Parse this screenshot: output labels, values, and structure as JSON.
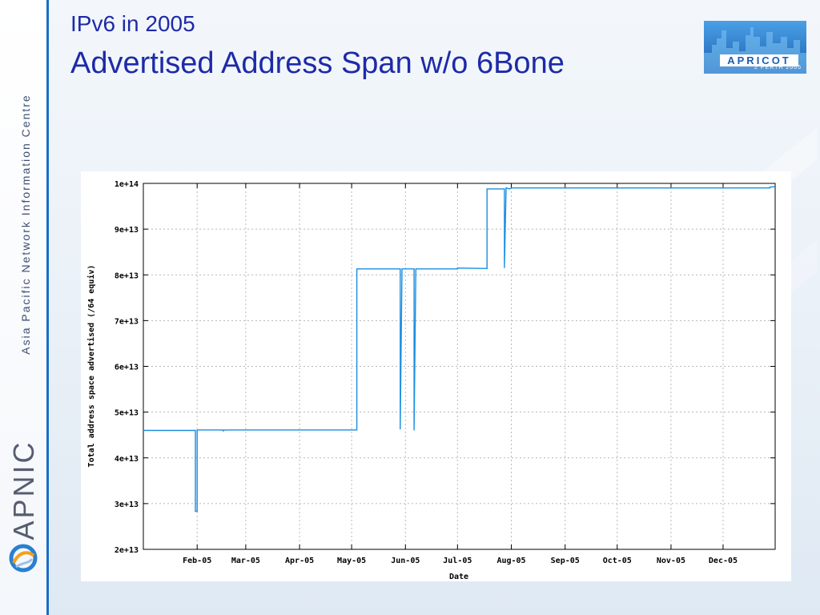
{
  "slide": {
    "subtitle": "IPv6 in 2005",
    "title": "Advertised Address Span w/o 6Bone",
    "sidebar_text": "Asia Pacific Network Information Centre",
    "sidebar_logo": "APNIC",
    "logo": {
      "name": "APRICOT",
      "tagline": "2 PERTH 2005"
    },
    "colors": {
      "title": "#1e2aa8",
      "accent": "#1a6fc4",
      "series": "#1a8ee0"
    },
    "icons": [
      "apnic-logo-icon",
      "apricot-logo-icon"
    ]
  },
  "chart_data": {
    "type": "line",
    "title": "",
    "xlabel": "Date",
    "ylabel": "Total address space advertised (/64 equiv)",
    "x_ticks": [
      "Feb-05",
      "Mar-05",
      "Apr-05",
      "May-05",
      "Jun-05",
      "Jul-05",
      "Aug-05",
      "Sep-05",
      "Oct-05",
      "Nov-05",
      "Dec-05"
    ],
    "y_ticks": [
      "2e+13",
      "3e+13",
      "4e+13",
      "5e+13",
      "6e+13",
      "7e+13",
      "8e+13",
      "9e+13",
      "1e+14"
    ],
    "xlim": [
      "2005-01-01",
      "2005-12-31"
    ],
    "ylim": [
      20000000000000.0,
      100000000000000.0
    ],
    "grid": true,
    "legend": false,
    "series": [
      {
        "points": [
          [
            "2005-01-01",
            46000000000000.0
          ],
          [
            "2005-01-31",
            46000000000000.0
          ],
          [
            "2005-01-31",
            28300000000000.0
          ],
          [
            "2005-02-01",
            28300000000000.0
          ],
          [
            "2005-02-01",
            46100000000000.0
          ],
          [
            "2005-02-16",
            46100000000000.0
          ],
          [
            "2005-02-16",
            45900000000000.0
          ],
          [
            "2005-02-17",
            46100000000000.0
          ],
          [
            "2005-05-04",
            46100000000000.0
          ],
          [
            "2005-05-04",
            81300000000000.0
          ],
          [
            "2005-05-29",
            81300000000000.0
          ],
          [
            "2005-05-29",
            46200000000000.0
          ],
          [
            "2005-05-30",
            81300000000000.0
          ],
          [
            "2005-06-06",
            81300000000000.0
          ],
          [
            "2005-06-06",
            46000000000000.0
          ],
          [
            "2005-06-07",
            81300000000000.0
          ],
          [
            "2005-07-01",
            81300000000000.0
          ],
          [
            "2005-07-01",
            81500000000000.0
          ],
          [
            "2005-07-18",
            81400000000000.0
          ],
          [
            "2005-07-18",
            98800000000000.0
          ],
          [
            "2005-07-28",
            98800000000000.0
          ],
          [
            "2005-07-28",
            81500000000000.0
          ],
          [
            "2005-07-29",
            99000000000000.0
          ],
          [
            "2005-07-31",
            98800000000000.0
          ],
          [
            "2005-08-01",
            99000000000000.0
          ],
          [
            "2005-12-28",
            99000000000000.0
          ],
          [
            "2005-12-28",
            99200000000000.0
          ],
          [
            "2005-12-31",
            99300000000000.0
          ]
        ]
      }
    ]
  }
}
